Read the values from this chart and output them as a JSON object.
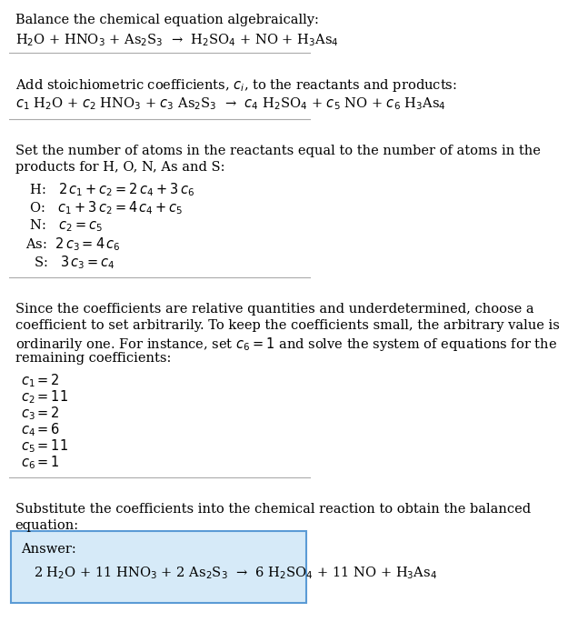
{
  "title_line": "Balance the chemical equation algebraically:",
  "eq1": "H$_2$O + HNO$_3$ + As$_2$S$_3$  →  H$_2$SO$_4$ + NO + H$_3$As$_4$",
  "add_coeff_line": "Add stoichiometric coefficients, $c_i$, to the reactants and products:",
  "eq2": "$c_1$ H$_2$O + $c_2$ HNO$_3$ + $c_3$ As$_2$S$_3$  →  $c_4$ H$_2$SO$_4$ + $c_5$ NO + $c_6$ H$_3$As$_4$",
  "set_atoms_line1": "Set the number of atoms in the reactants equal to the number of atoms in the",
  "set_atoms_line2": "products for H, O, N, As and S:",
  "equations": [
    " H:   $2\\,c_1 + c_2 = 2\\,c_4 + 3\\,c_6$",
    " O:   $c_1 + 3\\,c_2 = 4\\,c_4 + c_5$",
    " N:   $c_2 = c_5$",
    "As:  $2\\,c_3 = 4\\,c_6$",
    "  S:   $3\\,c_3 = c_4$"
  ],
  "since_line1": "Since the coefficients are relative quantities and underdetermined, choose a",
  "since_line2": "coefficient to set arbitrarily. To keep the coefficients small, the arbitrary value is",
  "since_line3": "ordinarily one. For instance, set $c_6 = 1$ and solve the system of equations for the",
  "since_line4": "remaining coefficients:",
  "coeffs": [
    "$c_1 = 2$",
    "$c_2 = 11$",
    "$c_3 = 2$",
    "$c_4 = 6$",
    "$c_5 = 11$",
    "$c_6 = 1$"
  ],
  "subst_line1": "Substitute the coefficients into the chemical reaction to obtain the balanced",
  "subst_line2": "equation:",
  "answer_label": "Answer:",
  "balanced_eq": "2 H$_2$O + 11 HNO$_3$ + 2 As$_2$S$_3$  →  6 H$_2$SO$_4$ + 11 NO + H$_3$As$_4$",
  "bg_color": "#ffffff",
  "box_color": "#d6eaf8",
  "box_border_color": "#5b9bd5",
  "text_color": "#000000",
  "font_size": 10.5,
  "separator_color": "#aaaaaa"
}
